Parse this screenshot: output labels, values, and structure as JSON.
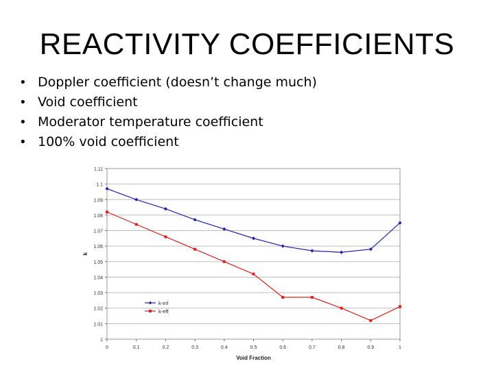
{
  "slide": {
    "title": "REACTIVITY COEFFICIENTS",
    "bullets": [
      "Doppler coefficient (doesn’t change much)",
      "Void coefficient",
      "Moderator temperature coefficient",
      "100% void coefficient"
    ],
    "bullet_symbol": "•"
  },
  "chart_data": {
    "type": "line",
    "title": "",
    "xlabel": "Void Fraction",
    "ylabel": "k",
    "x": [
      0,
      0.1,
      0.2,
      0.3,
      0.4,
      0.5,
      0.6,
      0.7,
      0.8,
      0.9,
      1
    ],
    "x_tick_labels": [
      "0",
      "0.1",
      "0.2",
      "0.3",
      "0.4",
      "0.5",
      "0.6",
      "0.7",
      "0.8",
      "0.9",
      "1"
    ],
    "xlim": [
      0,
      1
    ],
    "ylim": [
      1,
      1.11
    ],
    "y_ticks": [
      1,
      1.01,
      1.02,
      1.03,
      1.04,
      1.05,
      1.06,
      1.07,
      1.08,
      1.09,
      1.1,
      1.11
    ],
    "y_tick_labels": [
      "1",
      "1.01",
      "1.02",
      "1.03",
      "1.04",
      "1.05",
      "1.06",
      "1.07",
      "1.08",
      "1.09",
      "1.1",
      "1.11"
    ],
    "grid": true,
    "legend_position": "lower-left",
    "series": [
      {
        "name": "k-inf",
        "color": "#1f1fb4",
        "marker": "diamond",
        "values": [
          1.097,
          1.09,
          1.084,
          1.077,
          1.071,
          1.065,
          1.06,
          1.057,
          1.056,
          1.058,
          1.075
        ]
      },
      {
        "name": "k-eff",
        "color": "#e0201c",
        "marker": "square",
        "values": [
          1.082,
          1.074,
          1.066,
          1.058,
          1.05,
          1.042,
          1.027,
          1.027,
          1.02,
          1.012,
          1.021
        ]
      }
    ]
  }
}
